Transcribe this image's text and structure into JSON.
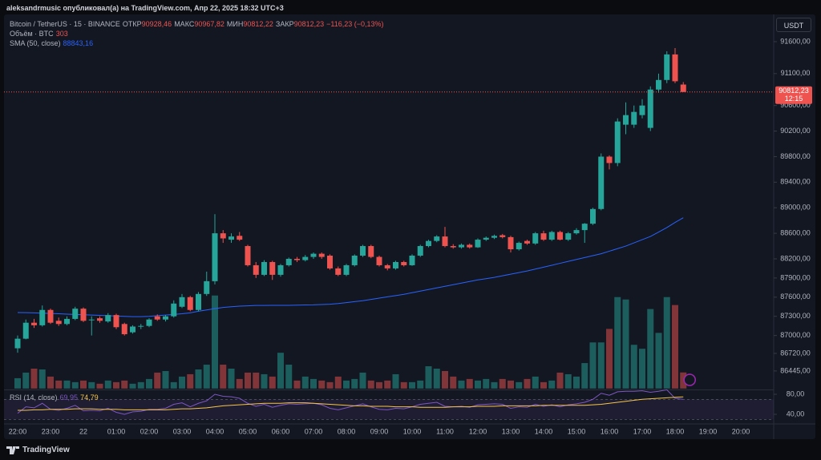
{
  "header": {
    "publisher": "aleksandrmusic опубликовал(а) на TradingView.com, Апр 22, 2025 18:32 UTC+3",
    "brand": "TradingView"
  },
  "chart_data": {
    "type": "candlestick",
    "symbol": "Bitcoin / TetherUS · 15 · BINANCE",
    "ohlc_legend": [
      {
        "label": "ОТКР",
        "value": "90928,46"
      },
      {
        "label": "МАКС",
        "value": "90967,82"
      },
      {
        "label": "МИН",
        "value": "90812,22"
      },
      {
        "label": "ЗАКР",
        "value": "90812,23"
      }
    ],
    "change": "−116,23 (−0,13%)",
    "currency": "USDT",
    "categories": [
      "22:00",
      null,
      null,
      null,
      "23:00",
      null,
      null,
      null,
      "22",
      null,
      null,
      null,
      "01:00",
      null,
      null,
      null,
      "02:00",
      null,
      null,
      null,
      "03:00",
      null,
      null,
      null,
      "04:00",
      null,
      null,
      null,
      "05:00",
      null,
      null,
      null,
      "06:00",
      null,
      null,
      null,
      "07:00",
      null,
      null,
      null,
      "08:00",
      null,
      null,
      null,
      "09:00",
      null,
      null,
      null,
      "10:00",
      null,
      null,
      null,
      "11:00",
      null,
      null,
      null,
      "12:00",
      null,
      null,
      null,
      "13:00",
      null,
      null,
      null,
      "14:00",
      null,
      null,
      null,
      "15:00",
      null,
      null,
      null,
      "16:00",
      null,
      null,
      null,
      "17:00",
      null,
      null,
      null,
      "18:00",
      null,
      null,
      null,
      "19:00",
      null,
      null,
      null,
      "20:00"
    ],
    "open": [
      86800,
      86950,
      87200,
      87160,
      87400,
      87230,
      87180,
      87260,
      87420,
      87240,
      87270,
      87220,
      87320,
      87180,
      87050,
      87140,
      87150,
      87300,
      87250,
      87300,
      87450,
      87600,
      87400,
      87650,
      87850,
      88600,
      88500,
      88560,
      88400,
      88100,
      87950,
      88150,
      87950,
      88100,
      88200,
      88180,
      88230,
      88280,
      88250,
      88050,
      87950,
      88100,
      88250,
      88400,
      88230,
      88100,
      88050,
      88150,
      88100,
      88250,
      88400,
      88480,
      88550,
      88400,
      88380,
      88420,
      88380,
      88500,
      88530,
      88570,
      88540,
      88350,
      88480,
      88440,
      88600,
      88500,
      88620,
      88500,
      88600,
      88650,
      88750,
      88980,
      89800,
      89700,
      90300,
      90300,
      90450,
      90250,
      90850,
      91000,
      91400,
      90928.46,
      null,
      null,
      null,
      null,
      null,
      null,
      null
    ],
    "high": [
      87000,
      87250,
      87260,
      87470,
      87420,
      87280,
      87300,
      87450,
      87440,
      87300,
      87300,
      87350,
      87340,
      87200,
      87160,
      87180,
      87270,
      87330,
      87320,
      87550,
      87650,
      87620,
      87680,
      88000,
      88900,
      88650,
      88600,
      88620,
      88420,
      88150,
      88180,
      88170,
      88120,
      88220,
      88230,
      88260,
      88300,
      88300,
      88270,
      88080,
      88120,
      88270,
      88420,
      88420,
      88250,
      88120,
      88170,
      88170,
      88270,
      88420,
      88500,
      88570,
      88700,
      88430,
      88440,
      88440,
      88520,
      88550,
      88580,
      88590,
      88560,
      88470,
      88500,
      88620,
      88640,
      88640,
      88640,
      88620,
      88680,
      88760,
      89000,
      89850,
      89820,
      90400,
      90650,
      90600,
      90700,
      90900,
      91100,
      91450,
      91500,
      90967.82,
      null,
      null,
      null,
      null,
      null,
      null,
      null
    ],
    "low": [
      86730,
      86940,
      87120,
      87140,
      87180,
      87150,
      87160,
      87240,
      87210,
      87000,
      87200,
      87200,
      87100,
      87000,
      87030,
      87100,
      87130,
      87230,
      87220,
      87280,
      87430,
      87380,
      87380,
      87620,
      87800,
      88450,
      88450,
      88480,
      88080,
      87900,
      87930,
      87870,
      87920,
      88080,
      88150,
      88160,
      88200,
      88200,
      88030,
      87930,
      87930,
      88080,
      88230,
      88210,
      88080,
      88020,
      88030,
      88080,
      88090,
      88230,
      88380,
      88460,
      88380,
      88360,
      88360,
      88360,
      88370,
      88480,
      88510,
      88520,
      88300,
      88330,
      88420,
      88420,
      88480,
      88480,
      88490,
      88480,
      88580,
      88450,
      88730,
      88960,
      89600,
      89650,
      90150,
      90250,
      90400,
      90200,
      90800,
      90950,
      90950,
      90812.22,
      null,
      null,
      null,
      null,
      null,
      null,
      null
    ],
    "close": [
      86950,
      87200,
      87160,
      87400,
      87200,
      87180,
      87260,
      87420,
      87230,
      87250,
      87230,
      87320,
      87130,
      87020,
      87140,
      87150,
      87250,
      87250,
      87300,
      87500,
      87600,
      87400,
      87650,
      87850,
      88600,
      88520,
      88550,
      88500,
      88100,
      87950,
      88150,
      87950,
      88100,
      88200,
      88180,
      88230,
      88280,
      88230,
      88050,
      87950,
      88100,
      88250,
      88400,
      88230,
      88100,
      88050,
      88150,
      88100,
      88250,
      88400,
      88480,
      88550,
      88400,
      88380,
      88420,
      88380,
      88500,
      88530,
      88560,
      88540,
      88350,
      88450,
      88440,
      88600,
      88500,
      88620,
      88500,
      88600,
      88650,
      88750,
      88980,
      89800,
      89700,
      90350,
      90450,
      90500,
      90600,
      90850,
      91000,
      91400,
      90980,
      90812.23,
      null,
      null,
      null,
      null,
      null,
      null,
      null
    ],
    "up_color": "#26a69a",
    "down_color": "#ef5350",
    "ylim": [
      86170,
      92060
    ],
    "yticks": [
      {
        "value": 91600,
        "label": "91600,00"
      },
      {
        "value": 91100,
        "label": "91100,00"
      },
      {
        "value": 90600,
        "label": "90600,00"
      },
      {
        "value": 90200,
        "label": "90200,00"
      },
      {
        "value": 89800,
        "label": "89800,00"
      },
      {
        "value": 89400,
        "label": "89400,00"
      },
      {
        "value": 89000,
        "label": "89000,00"
      },
      {
        "value": 88600,
        "label": "88600,00"
      },
      {
        "value": 88200,
        "label": "88200,00"
      },
      {
        "value": 87900,
        "label": "87900,00"
      },
      {
        "value": 87600,
        "label": "87600,00"
      },
      {
        "value": 87300,
        "label": "87300,00"
      },
      {
        "value": 87000,
        "label": "87000,00"
      },
      {
        "value": 86720,
        "label": "86720,00"
      },
      {
        "value": 86445,
        "label": "86445,00"
      }
    ],
    "last_price": {
      "label": "90812,23",
      "countdown": "12:15"
    },
    "volume": {
      "name": "Объём · BTC",
      "ylim": [
        0,
        7100
      ],
      "values": [
        195,
        300,
        375,
        360,
        225,
        150,
        150,
        120,
        150,
        120,
        90,
        150,
        120,
        150,
        90,
        120,
        180,
        300,
        330,
        120,
        225,
        270,
        360,
        450,
        1755,
        450,
        375,
        180,
        300,
        300,
        270,
        225,
        675,
        450,
        150,
        225,
        180,
        150,
        120,
        225,
        150,
        180,
        300,
        150,
        120,
        150,
        270,
        120,
        120,
        150,
        420,
        375,
        330,
        225,
        150,
        180,
        150,
        180,
        120,
        180,
        150,
        120,
        180,
        225,
        120,
        150,
        300,
        270,
        225,
        480,
        870,
        870,
        1125,
        1725,
        1680,
        825,
        750,
        1500,
        1050,
        1725,
        1575,
        303,
        null,
        null,
        null,
        null,
        null,
        null,
        null
      ]
    },
    "sma": {
      "name": "SMA (50, close)",
      "value_label": "88843,16",
      "color": "#2962ff",
      "values": [
        87360,
        87358,
        87355,
        87350,
        87345,
        87340,
        87335,
        87330,
        87325,
        87320,
        87315,
        87310,
        87305,
        87300,
        87295,
        87295,
        87300,
        87310,
        87320,
        87330,
        87340,
        87355,
        87380,
        87400,
        87420,
        87440,
        87450,
        87460,
        87465,
        87470,
        87470,
        87472,
        87472,
        87472,
        87475,
        87478,
        87480,
        87485,
        87490,
        87500,
        87515,
        87530,
        87545,
        87565,
        87585,
        87605,
        87625,
        87645,
        87670,
        87695,
        87720,
        87745,
        87770,
        87795,
        87820,
        87845,
        87870,
        87890,
        87910,
        87935,
        87960,
        87985,
        88010,
        88040,
        88070,
        88100,
        88130,
        88160,
        88190,
        88220,
        88250,
        88280,
        88320,
        88360,
        88400,
        88450,
        88500,
        88550,
        88620,
        88690,
        88770,
        88843,
        null,
        null,
        null,
        null,
        null,
        null,
        null
      ]
    },
    "rsi": {
      "name": "RSI (14, close)",
      "value_label": "69,95",
      "color": "#7e57c2",
      "ma_value_label": "74,79",
      "ma_color": "#f7c548",
      "ylim": [
        24,
        86
      ],
      "yticks": [
        {
          "value": 80,
          "label": "80,00"
        },
        {
          "value": 40,
          "label": "40,00"
        }
      ],
      "bands": [
        30,
        70
      ],
      "values": [
        42,
        55,
        53,
        62,
        50,
        48,
        52,
        58,
        47,
        48,
        47,
        52,
        44,
        40,
        45,
        46,
        50,
        50,
        52,
        60,
        63,
        55,
        62,
        67,
        80,
        76,
        75,
        72,
        62,
        56,
        60,
        54,
        58,
        61,
        60,
        61,
        62,
        59,
        52,
        49,
        53,
        57,
        61,
        55,
        50,
        49,
        52,
        51,
        55,
        60,
        62,
        64,
        56,
        55,
        56,
        54,
        59,
        60,
        61,
        60,
        52,
        55,
        54,
        60,
        56,
        59,
        55,
        59,
        61,
        64,
        70,
        82,
        78,
        85,
        86,
        86,
        87,
        84,
        86,
        89,
        72,
        69.95,
        null,
        null,
        null,
        null,
        null,
        null,
        null
      ],
      "ma_values": [
        48,
        48,
        49,
        49,
        50,
        50,
        50,
        51,
        51,
        51,
        50,
        50,
        50,
        49,
        49,
        49,
        49,
        49,
        49,
        50,
        51,
        51,
        52,
        53,
        55,
        57,
        58,
        59,
        60,
        61,
        62,
        62,
        62,
        63,
        63,
        63,
        62,
        61,
        60,
        59,
        58,
        57,
        57,
        56,
        56,
        56,
        55,
        55,
        55,
        54,
        54,
        54,
        54,
        55,
        55,
        55,
        56,
        56,
        56,
        57,
        57,
        57,
        57,
        57,
        58,
        58,
        58,
        58,
        58,
        58,
        59,
        60,
        62,
        64,
        66,
        68,
        70,
        71,
        72,
        73,
        74,
        74.79,
        null,
        null,
        null,
        null,
        null,
        null,
        null
      ]
    }
  }
}
